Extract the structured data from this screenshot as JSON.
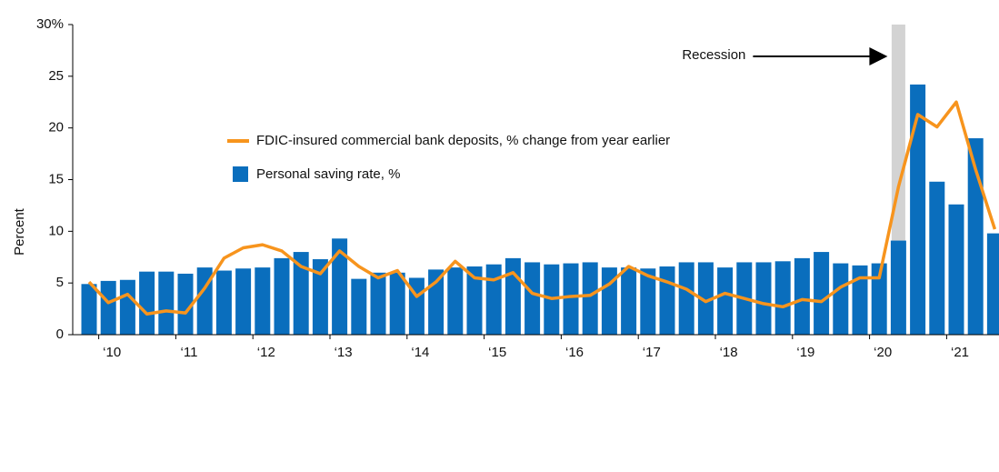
{
  "chart_data": {
    "type": "bar-line",
    "y_axis_label": "Percent",
    "categories": [
      null,
      "‘10",
      null,
      null,
      null,
      "‘11",
      null,
      null,
      null,
      "‘12",
      null,
      null,
      null,
      "‘13",
      null,
      null,
      null,
      "‘14",
      null,
      null,
      null,
      "‘15",
      null,
      null,
      null,
      "‘16",
      null,
      null,
      null,
      "‘17",
      null,
      null,
      null,
      "‘18",
      null,
      null,
      null,
      "‘19",
      null,
      null,
      null,
      "‘20",
      null,
      null,
      null,
      "‘21",
      null,
      null
    ],
    "series": [
      {
        "name": "Personal saving rate, %",
        "kind": "bar",
        "color": "#0a6ebd",
        "values": [
          4.9,
          5.2,
          5.3,
          6.1,
          6.1,
          5.9,
          6.5,
          6.2,
          6.4,
          6.5,
          7.4,
          8.0,
          7.3,
          9.3,
          5.4,
          6.0,
          6.0,
          5.5,
          6.3,
          6.5,
          6.6,
          6.8,
          7.4,
          7.0,
          6.8,
          6.9,
          7.0,
          6.5,
          6.5,
          6.4,
          6.6,
          7.0,
          7.0,
          6.5,
          7.0,
          7.0,
          7.1,
          7.4,
          8.0,
          6.9,
          6.7,
          6.9,
          9.1,
          24.2,
          14.8,
          12.6,
          19.0,
          9.8
        ]
      },
      {
        "name": "FDIC-insured commercial bank deposits, % change from year earlier",
        "kind": "line",
        "color": "#f7941d",
        "values": [
          5.1,
          3.1,
          3.9,
          2.0,
          2.3,
          2.1,
          4.5,
          7.4,
          8.4,
          8.7,
          8.1,
          6.6,
          5.9,
          8.1,
          6.6,
          5.5,
          6.2,
          3.7,
          5.1,
          7.1,
          5.5,
          5.3,
          6.0,
          4.0,
          3.5,
          3.7,
          3.8,
          4.9,
          6.6,
          5.7,
          5.1,
          4.4,
          3.2,
          4.0,
          3.5,
          3.0,
          2.7,
          3.4,
          3.2,
          4.6,
          5.5,
          5.5,
          14.3,
          21.3,
          20.1,
          22.5,
          16.0,
          10.2
        ]
      }
    ],
    "recession": {
      "label": "Recession",
      "category_index": 42,
      "color": "#d3d3d3"
    },
    "ylim": [
      0,
      30
    ],
    "yticks": [
      0,
      5,
      10,
      15,
      20,
      25,
      {
        "value": 30,
        "label": "30%"
      }
    ]
  }
}
